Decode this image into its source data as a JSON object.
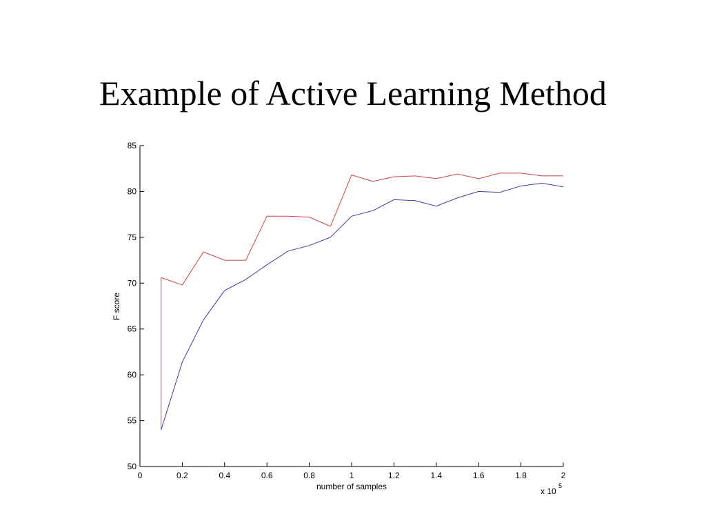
{
  "chart_data": {
    "type": "line",
    "title": "Example of Active Learning Method",
    "xlabel": "number of samples",
    "ylabel": "F score",
    "x_multiplier": "x 10",
    "x_multiplier_exponent": 5,
    "xlim": [
      0,
      2
    ],
    "xticks": [
      0,
      0.2,
      0.4,
      0.6,
      0.8,
      1,
      1.2,
      1.4,
      1.6,
      1.8,
      2
    ],
    "ylim": [
      50,
      85
    ],
    "yticks": [
      50,
      55,
      60,
      65,
      70,
      75,
      80,
      85
    ],
    "series": [
      {
        "color": "#d04040",
        "x": [
          0.1,
          0.1,
          0.2,
          0.3,
          0.4,
          0.5,
          0.6,
          0.7,
          0.8,
          0.9,
          1.0,
          1.1,
          1.2,
          1.3,
          1.4,
          1.5,
          1.6,
          1.7,
          1.8,
          1.9,
          2.0
        ],
        "values": [
          54,
          70.6,
          69.8,
          73.4,
          72.5,
          72.5,
          77.3,
          77.3,
          77.2,
          76.2,
          81.8,
          81.1,
          81.6,
          81.7,
          81.4,
          81.9,
          81.4,
          82.0,
          82.0,
          81.7,
          81.7
        ]
      },
      {
        "color": "#3a3aa8",
        "x": [
          0.1,
          0.2,
          0.3,
          0.4,
          0.5,
          0.6,
          0.7,
          0.8,
          0.9,
          1.0,
          1.1,
          1.2,
          1.3,
          1.4,
          1.5,
          1.6,
          1.7,
          1.8,
          1.9,
          2.0
        ],
        "values": [
          54,
          61.4,
          66.0,
          69.2,
          70.4,
          72.0,
          73.5,
          74.1,
          75.0,
          77.3,
          77.9,
          79.1,
          79.0,
          78.4,
          79.3,
          80.0,
          79.9,
          80.6,
          80.9,
          80.5
        ]
      }
    ]
  }
}
